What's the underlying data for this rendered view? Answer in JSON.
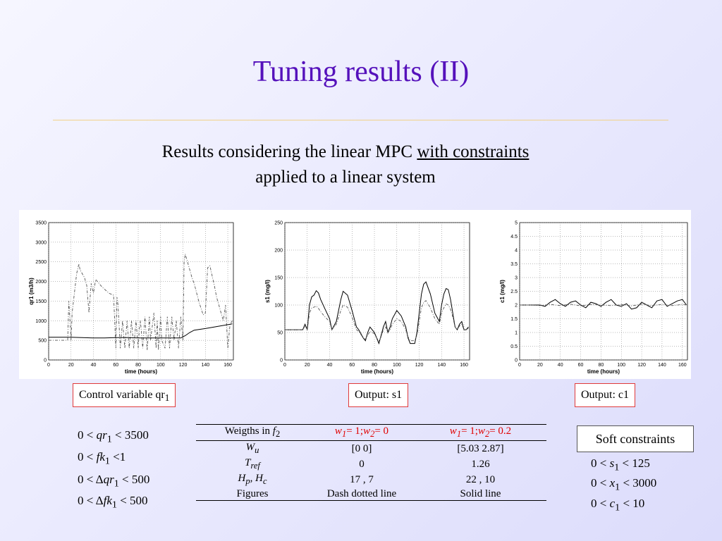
{
  "slide": {
    "title": "Tuning results (II)",
    "subtitle_line1_pre": "Results considering the linear MPC ",
    "subtitle_line1_link": "with constraints",
    "subtitle_line2": "applied to a linear system"
  },
  "captions": {
    "qr1_pre": "Control variable qr",
    "qr1_sub": "1",
    "s1": "Output: s1",
    "c1": "Output: c1"
  },
  "left_constraints": [
    {
      "lhs": "0 <",
      "var": "qr",
      "sub": "1",
      "rhs": "< 3500"
    },
    {
      "lhs": "0 <",
      "var": "fk",
      "sub": "1",
      "rhs": "<1"
    },
    {
      "lhs": "0 < Δ",
      "var": "qr",
      "sub": "1",
      "rhs": "< 500"
    },
    {
      "lhs": "0 < Δ",
      "var": "fk",
      "sub": "1",
      "rhs": "< 500"
    }
  ],
  "soft_constraints": {
    "label": "Soft constraints",
    "items": [
      {
        "lhs": "0 <",
        "var": "s",
        "sub": "1",
        "rhs": "< 125"
      },
      {
        "lhs": "0 <",
        "var": "x",
        "sub": "1",
        "rhs": "< 3000"
      },
      {
        "lhs": "0 <",
        "var": "c",
        "sub": "1",
        "rhs": "< 10"
      }
    ]
  },
  "table": {
    "header": {
      "c0_pre": "Weigths in ",
      "c0_var": "f",
      "c0_sub": "2",
      "c1": "w1= 1;w2= 0",
      "c2": "w1= 1;w2= 0.2"
    },
    "rows": [
      {
        "label": "W",
        "sub": "u",
        "v1": "[0 0]",
        "v2": "[5.03 2.87]"
      },
      {
        "label": "T",
        "sub": "ref",
        "v1": "0",
        "v2": "1.26"
      },
      {
        "label": "Hp, Hc",
        "sub": "",
        "v1": "17 , 7",
        "v2": "22 , 10"
      },
      {
        "label": "Figures",
        "sub": "",
        "v1": "Dash dotted line",
        "v2": "Solid line"
      }
    ]
  },
  "chart_data": [
    {
      "type": "line",
      "xlabel": "time (hours)",
      "ylabel": "qr1 (m3/h)",
      "xlim": [
        0,
        165
      ],
      "ylim": [
        0,
        3500
      ],
      "xticks": [
        0,
        20,
        40,
        60,
        80,
        100,
        120,
        140,
        160
      ],
      "yticks": [
        0,
        500,
        1000,
        1500,
        2000,
        2500,
        3000,
        3500
      ],
      "grid": true,
      "series": [
        {
          "style": "dash-dotted",
          "x": [
            0,
            17,
            18,
            19,
            20,
            21,
            25,
            27,
            28,
            32,
            34,
            36,
            38,
            40,
            42,
            48,
            50,
            54,
            58,
            60,
            61,
            62,
            64,
            66,
            68,
            70,
            72,
            74,
            76,
            78,
            80,
            81,
            82,
            84,
            86,
            88,
            90,
            91,
            94,
            96,
            97,
            98,
            100,
            101,
            104,
            106,
            108,
            110,
            112,
            114,
            116,
            118,
            120,
            121,
            122,
            124,
            126,
            128,
            130,
            134,
            138,
            140,
            142,
            144,
            146,
            148,
            150,
            152,
            154,
            156,
            158,
            160,
            162,
            164
          ],
          "y": [
            500,
            500,
            1500,
            1000,
            500,
            1200,
            2200,
            2450,
            2300,
            2100,
            1900,
            1200,
            1950,
            1700,
            2050,
            1850,
            1800,
            1700,
            1650,
            300,
            1600,
            1400,
            300,
            1000,
            300,
            1000,
            300,
            1000,
            300,
            1000,
            300,
            800,
            1000,
            300,
            1100,
            250,
            1100,
            500,
            1200,
            300,
            1000,
            250,
            1100,
            500,
            300,
            1100,
            300,
            1100,
            500,
            1000,
            300,
            1100,
            500,
            2500,
            2700,
            2500,
            2300,
            2100,
            1950,
            1500,
            1150,
            1200,
            2350,
            2400,
            2150,
            1900,
            1600,
            1400,
            1200,
            1000,
            1400,
            300,
            900,
            1000
          ]
        },
        {
          "style": "solid",
          "x": [
            0,
            10,
            20,
            30,
            40,
            50,
            60,
            70,
            80,
            90,
            100,
            110,
            118,
            122,
            126,
            130,
            140,
            150,
            160,
            164
          ],
          "y": [
            580,
            580,
            580,
            570,
            560,
            560,
            570,
            570,
            560,
            560,
            560,
            560,
            560,
            620,
            700,
            760,
            800,
            850,
            900,
            920
          ]
        }
      ]
    },
    {
      "type": "line",
      "xlabel": "time (hours)",
      "ylabel": "s1 (mg/l)",
      "xlim": [
        0,
        165
      ],
      "ylim": [
        0,
        250
      ],
      "xticks": [
        0,
        20,
        40,
        60,
        80,
        100,
        120,
        140,
        160
      ],
      "yticks": [
        0,
        50,
        100,
        150,
        200,
        250
      ],
      "grid": true,
      "series": [
        {
          "style": "solid",
          "x": [
            0,
            10,
            16,
            18,
            20,
            22,
            24,
            26,
            28,
            30,
            32,
            36,
            40,
            42,
            46,
            50,
            52,
            56,
            60,
            64,
            66,
            70,
            72,
            74,
            76,
            80,
            82,
            84,
            86,
            88,
            90,
            92,
            94,
            96,
            100,
            104,
            108,
            110,
            112,
            116,
            118,
            120,
            122,
            124,
            126,
            130,
            134,
            138,
            140,
            142,
            144,
            146,
            148,
            150,
            152,
            154,
            156,
            158,
            160,
            162,
            164
          ],
          "y": [
            55,
            55,
            55,
            65,
            55,
            100,
            115,
            118,
            126,
            122,
            110,
            92,
            75,
            55,
            70,
            110,
            125,
            118,
            90,
            60,
            55,
            40,
            35,
            50,
            60,
            50,
            40,
            30,
            45,
            60,
            70,
            50,
            60,
            75,
            90,
            80,
            60,
            40,
            30,
            30,
            50,
            85,
            120,
            138,
            142,
            120,
            85,
            70,
            100,
            120,
            130,
            128,
            110,
            85,
            60,
            55,
            65,
            70,
            55,
            55,
            60
          ]
        },
        {
          "style": "dash-dotted",
          "x": [
            0,
            10,
            16,
            18,
            20,
            22,
            24,
            26,
            28,
            30,
            32,
            36,
            40,
            42,
            46,
            50,
            52,
            56,
            60,
            64,
            66,
            70,
            72,
            74,
            76,
            80,
            82,
            84,
            86,
            88,
            90,
            92,
            94,
            96,
            100,
            104,
            108,
            110,
            112,
            116,
            118,
            120,
            122,
            124,
            126,
            130,
            134,
            138,
            140,
            142,
            144,
            146,
            148,
            150,
            152,
            154,
            156,
            158,
            160,
            162,
            164
          ],
          "y": [
            55,
            55,
            55,
            62,
            55,
            85,
            95,
            96,
            98,
            94,
            88,
            78,
            70,
            55,
            65,
            90,
            100,
            96,
            78,
            55,
            52,
            40,
            38,
            45,
            52,
            48,
            40,
            35,
            42,
            55,
            60,
            50,
            55,
            65,
            75,
            70,
            55,
            42,
            35,
            35,
            45,
            70,
            95,
            105,
            108,
            95,
            75,
            65,
            85,
            95,
            102,
            100,
            92,
            78,
            60,
            55,
            62,
            65,
            55,
            55,
            58
          ]
        }
      ]
    },
    {
      "type": "line",
      "xlabel": "time (hours)",
      "ylabel": "c1 (mg/l)",
      "xlim": [
        0,
        165
      ],
      "ylim": [
        0,
        5
      ],
      "xticks": [
        0,
        20,
        40,
        60,
        80,
        100,
        120,
        140,
        160
      ],
      "yticks": [
        0,
        0.5,
        1,
        1.5,
        2,
        2.5,
        3,
        3.5,
        4,
        4.5,
        5
      ],
      "grid": true,
      "series": [
        {
          "style": "solid",
          "x": [
            0,
            10,
            20,
            25,
            30,
            35,
            40,
            45,
            50,
            55,
            60,
            65,
            70,
            75,
            80,
            85,
            90,
            95,
            100,
            105,
            110,
            115,
            120,
            125,
            130,
            135,
            140,
            145,
            150,
            155,
            160,
            164
          ],
          "y": [
            2,
            2,
            2,
            1.95,
            2.1,
            2.2,
            2.05,
            1.95,
            2.1,
            2.15,
            2.0,
            1.9,
            2.1,
            2.05,
            1.95,
            2.1,
            2.2,
            2.0,
            1.95,
            2.05,
            1.85,
            1.9,
            2.1,
            2.0,
            1.9,
            2.15,
            2.2,
            1.95,
            2.05,
            2.15,
            2.2,
            2.0
          ]
        },
        {
          "style": "dash-dotted",
          "x": [
            0,
            10,
            20,
            30,
            40,
            50,
            60,
            70,
            80,
            90,
            100,
            110,
            120,
            130,
            140,
            150,
            160,
            164
          ],
          "y": [
            2,
            2,
            1.98,
            2.02,
            1.98,
            2.03,
            1.97,
            2.02,
            2.0,
            1.98,
            2.02,
            1.97,
            2.03,
            1.98,
            2.02,
            1.98,
            2.02,
            2.0
          ]
        }
      ]
    }
  ]
}
